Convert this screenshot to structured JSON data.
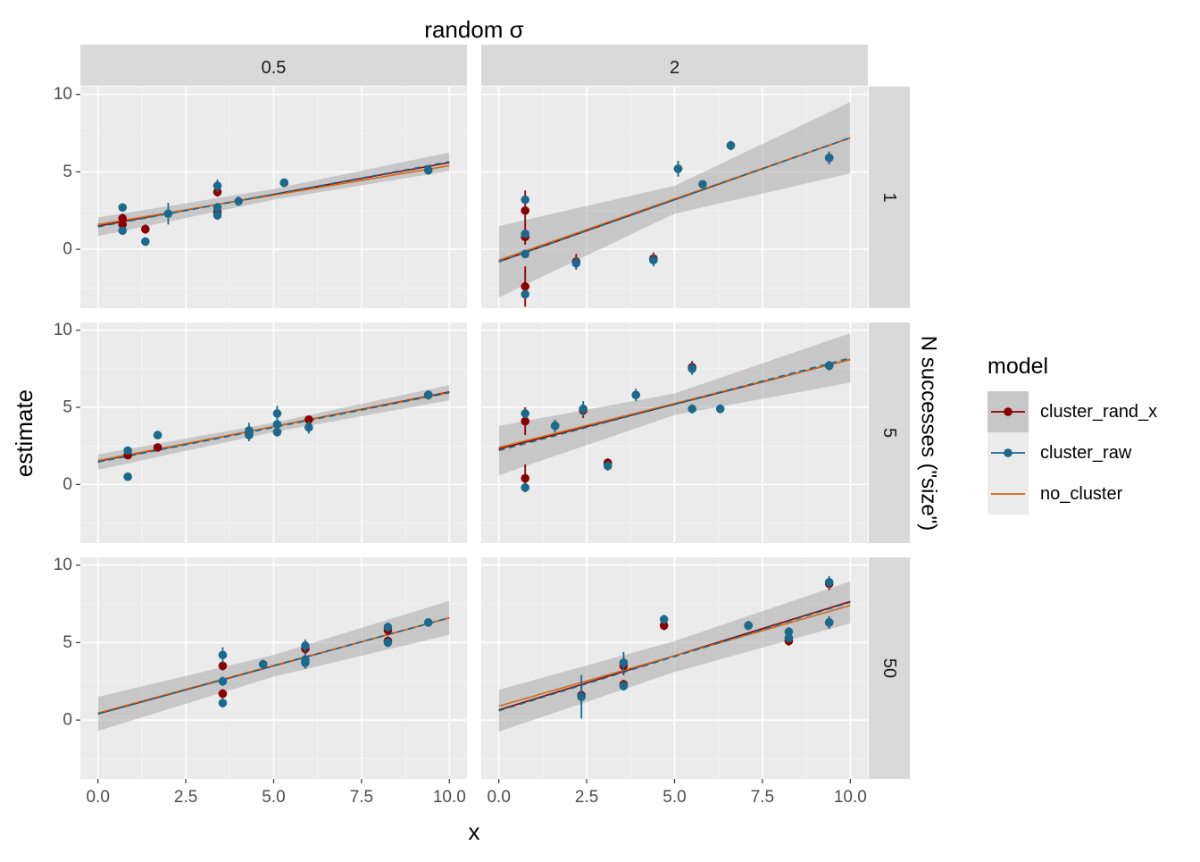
{
  "chart_data": {
    "type": "scatter",
    "top_strip_title": "random σ",
    "right_strip_title": "N successes (\"size\")",
    "xlabel": "x",
    "ylabel": "estimate",
    "xlim": [
      -0.5,
      10.5
    ],
    "ylim": [
      -3.8,
      10.5
    ],
    "x_ticks": [
      0.0,
      2.5,
      5.0,
      7.5,
      10.0
    ],
    "x_tick_labels": [
      "0.0",
      "2.5",
      "5.0",
      "7.5",
      "10.0"
    ],
    "y_ticks": [
      0,
      5,
      10
    ],
    "y_tick_labels": [
      "0",
      "5",
      "10"
    ],
    "columns": [
      "0.5",
      "2"
    ],
    "rows": [
      "1",
      "5",
      "50"
    ],
    "grid": true,
    "legend": {
      "title": "model",
      "position": "right",
      "entries": [
        "cluster_rand_x",
        "cluster_raw",
        "no_cluster"
      ]
    },
    "colors": {
      "cluster_rand_x": "#8b0000",
      "cluster_raw": "#1b6a8c",
      "no_cluster": "#d2691e",
      "panel_bg": "#ebebeb",
      "strip_bg": "#d9d9d9",
      "ribbon": "#a9a9a9"
    },
    "panels": [
      {
        "col": "0.5",
        "row": "1",
        "fit_raw": [
          1.45,
          0.42
        ],
        "fit_rand": [
          1.5,
          0.41
        ],
        "fit_no": [
          1.6,
          0.38
        ],
        "band": [
          0.35,
          0.25
        ],
        "rand_x": [
          [
            0.7,
            1.6,
            0.3
          ],
          [
            0.7,
            2.0,
            0.3
          ],
          [
            1.35,
            1.3,
            0.3
          ],
          [
            3.4,
            3.7,
            0.3
          ],
          [
            3.4,
            2.4,
            0.3
          ],
          [
            5.3,
            4.3,
            0.2
          ]
        ],
        "raw": [
          [
            0.7,
            2.7,
            0.2
          ],
          [
            0.7,
            1.2,
            0.2
          ],
          [
            1.35,
            0.5,
            0.2
          ],
          [
            2.0,
            2.3,
            0.7
          ],
          [
            3.4,
            4.1,
            0.4
          ],
          [
            3.4,
            2.7,
            0.3
          ],
          [
            3.4,
            2.2,
            0.3
          ],
          [
            4.0,
            3.1,
            0.3
          ],
          [
            5.3,
            4.3,
            0.2
          ],
          [
            9.4,
            5.1,
            0.3
          ]
        ]
      },
      {
        "col": "2",
        "row": "1",
        "fit_raw": [
          -0.8,
          0.8
        ],
        "fit_rand": [
          -0.8,
          0.8
        ],
        "fit_no": [
          -0.7,
          0.79
        ],
        "band": [
          0.9,
          1.4
        ],
        "rand_x": [
          [
            0.75,
            2.5,
            1.3
          ],
          [
            0.75,
            -2.4,
            1.3
          ],
          [
            0.75,
            0.8,
            0.5
          ],
          [
            2.2,
            -0.8,
            0.5
          ],
          [
            4.4,
            -0.6,
            0.4
          ],
          [
            5.1,
            5.2,
            0.5
          ],
          [
            6.6,
            6.7,
            0.3
          ],
          [
            9.4,
            5.9,
            0.4
          ]
        ],
        "raw": [
          [
            0.75,
            3.2,
            0.2
          ],
          [
            0.75,
            1.0,
            0.2
          ],
          [
            0.75,
            -0.3,
            0.2
          ],
          [
            0.75,
            -2.9,
            0.2
          ],
          [
            2.2,
            -0.9,
            0.4
          ],
          [
            4.4,
            -0.7,
            0.4
          ],
          [
            5.1,
            5.2,
            0.5
          ],
          [
            5.8,
            4.2,
            0.2
          ],
          [
            6.6,
            6.7,
            0.3
          ],
          [
            9.4,
            5.9,
            0.4
          ]
        ]
      },
      {
        "col": "0.5",
        "row": "5",
        "fit_raw": [
          1.45,
          0.45
        ],
        "fit_rand": [
          1.5,
          0.45
        ],
        "fit_no": [
          1.55,
          0.44
        ],
        "band": [
          0.3,
          0.2
        ],
        "rand_x": [
          [
            0.85,
            1.9,
            0.2
          ],
          [
            1.7,
            2.4,
            0.2
          ],
          [
            4.3,
            3.3,
            0.4
          ],
          [
            5.1,
            3.4,
            0.3
          ],
          [
            6.0,
            4.2,
            0.2
          ],
          [
            9.4,
            5.8,
            0.3
          ]
        ],
        "raw": [
          [
            0.85,
            2.2,
            0.2
          ],
          [
            0.85,
            0.5,
            0.2
          ],
          [
            1.7,
            3.2,
            0.2
          ],
          [
            4.3,
            3.5,
            0.5
          ],
          [
            4.3,
            3.2,
            0.4
          ],
          [
            5.1,
            4.6,
            0.5
          ],
          [
            5.1,
            3.9,
            0.4
          ],
          [
            5.1,
            3.4,
            0.3
          ],
          [
            6.0,
            3.7,
            0.4
          ],
          [
            9.4,
            5.8,
            0.3
          ]
        ]
      },
      {
        "col": "2",
        "row": "5",
        "fit_raw": [
          2.2,
          0.6
        ],
        "fit_rand": [
          2.3,
          0.58
        ],
        "fit_no": [
          2.4,
          0.57
        ],
        "band": [
          0.7,
          0.9
        ],
        "rand_x": [
          [
            0.75,
            4.1,
            0.9
          ],
          [
            0.75,
            0.4,
            0.9
          ],
          [
            1.6,
            3.8,
            0.4
          ],
          [
            2.4,
            4.8,
            0.5
          ],
          [
            3.1,
            1.4,
            0.3
          ],
          [
            5.5,
            7.6,
            0.4
          ],
          [
            9.4,
            7.7,
            0.3
          ]
        ],
        "raw": [
          [
            0.75,
            4.6,
            0.3
          ],
          [
            0.75,
            -0.2,
            0.3
          ],
          [
            1.6,
            3.8,
            0.4
          ],
          [
            2.4,
            4.9,
            0.5
          ],
          [
            3.1,
            1.2,
            0.3
          ],
          [
            3.9,
            5.8,
            0.4
          ],
          [
            5.5,
            4.9,
            0.3
          ],
          [
            5.5,
            7.5,
            0.4
          ],
          [
            6.3,
            4.9,
            0.3
          ],
          [
            9.4,
            7.7,
            0.3
          ]
        ]
      },
      {
        "col": "0.5",
        "row": "50",
        "fit_raw": [
          0.4,
          0.62
        ],
        "fit_rand": [
          0.4,
          0.62
        ],
        "fit_no": [
          0.45,
          0.615
        ],
        "band": [
          0.7,
          0.4
        ],
        "rand_x": [
          [
            3.55,
            3.5,
            0.3
          ],
          [
            3.55,
            1.7,
            0.3
          ],
          [
            5.9,
            4.6,
            0.4
          ],
          [
            8.25,
            5.8,
            0.3
          ],
          [
            8.25,
            5.1,
            0.3
          ]
        ],
        "raw": [
          [
            3.55,
            4.2,
            0.5
          ],
          [
            3.55,
            2.5,
            0.3
          ],
          [
            3.55,
            1.1,
            0.3
          ],
          [
            4.7,
            3.6,
            0.3
          ],
          [
            5.9,
            4.8,
            0.4
          ],
          [
            5.9,
            3.9,
            0.4
          ],
          [
            5.9,
            3.7,
            0.4
          ],
          [
            8.25,
            6.0,
            0.3
          ],
          [
            8.25,
            5.0,
            0.3
          ],
          [
            9.4,
            6.3,
            0.2
          ]
        ]
      },
      {
        "col": "2",
        "row": "50",
        "fit_raw": [
          0.6,
          0.7
        ],
        "fit_rand": [
          0.65,
          0.7
        ],
        "fit_no": [
          0.9,
          0.65
        ],
        "band": [
          1.0,
          0.35
        ],
        "rand_x": [
          [
            2.35,
            1.6,
            0.6
          ],
          [
            3.55,
            3.5,
            0.6
          ],
          [
            3.55,
            2.3,
            0.3
          ],
          [
            4.7,
            6.1,
            0.3
          ],
          [
            7.1,
            6.1,
            0.3
          ],
          [
            8.25,
            5.1,
            0.3
          ],
          [
            9.4,
            8.8,
            0.4
          ],
          [
            9.4,
            6.3,
            0.4
          ]
        ],
        "raw": [
          [
            2.35,
            1.5,
            1.4
          ],
          [
            3.55,
            3.7,
            0.7
          ],
          [
            3.55,
            2.2,
            0.3
          ],
          [
            4.7,
            6.5,
            0.3
          ],
          [
            7.1,
            6.1,
            0.3
          ],
          [
            8.25,
            5.7,
            0.3
          ],
          [
            8.25,
            5.3,
            0.3
          ],
          [
            9.4,
            8.9,
            0.4
          ],
          [
            9.4,
            6.3,
            0.4
          ]
        ]
      }
    ]
  }
}
